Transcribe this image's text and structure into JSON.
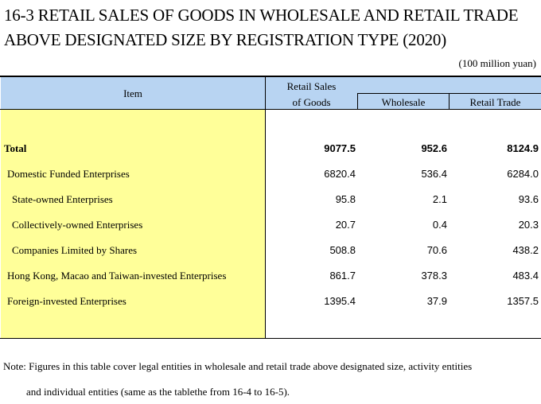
{
  "title_line1": "16-3  RETAIL SALES OF GOODS IN WHOLESALE AND RETAIL TRADE",
  "title_line2": "ABOVE DESIGNATED SIZE BY REGISTRATION TYPE (2020)",
  "unit": "(100 million yuan)",
  "headers": {
    "item": "Item",
    "retail_sales_line1": "Retail Sales",
    "retail_sales_line2": "of Goods",
    "wholesale": "Wholesale",
    "retail_trade": "Retail Trade"
  },
  "rows": [
    {
      "label": "Total",
      "retail_sales": "9077.5",
      "wholesale": "952.6",
      "retail_trade": "8124.9"
    },
    {
      "label": "Domestic Funded Enterprises",
      "retail_sales": "6820.4",
      "wholesale": "536.4",
      "retail_trade": "6284.0"
    },
    {
      "label": "State-owned Enterprises",
      "retail_sales": "95.8",
      "wholesale": "2.1",
      "retail_trade": "93.6"
    },
    {
      "label": "Collectively-owned Enterprises",
      "retail_sales": "20.7",
      "wholesale": "0.4",
      "retail_trade": "20.3"
    },
    {
      "label": "Companies Limited by Shares",
      "retail_sales": "508.8",
      "wholesale": "70.6",
      "retail_trade": "438.2"
    },
    {
      "label": "Hong Kong, Macao and Taiwan-invested Enterprises",
      "retail_sales": "861.7",
      "wholesale": "378.3",
      "retail_trade": "483.4"
    },
    {
      "label": "Foreign-invested Enterprises",
      "retail_sales": "1395.4",
      "wholesale": "37.9",
      "retail_trade": "1357.5"
    }
  ],
  "note_line1": "Note: Figures in this table cover legal entities in wholesale and retail trade above designated size, activity entities",
  "note_line2": "and individual entities (same as the tablethe from 16-4 to 16-5)."
}
